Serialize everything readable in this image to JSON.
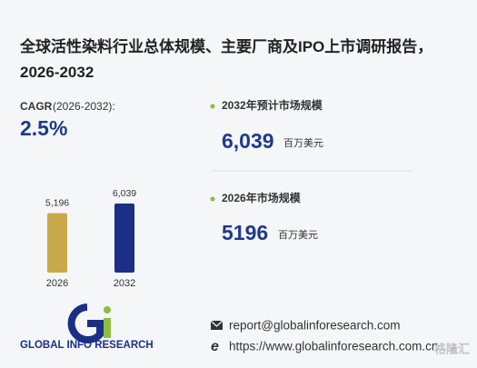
{
  "title": "全球活性染料行业总体规模、主要厂商及IPO上市调研报告，2026-2032",
  "cagr": {
    "label": "CAGR",
    "period": "(2026-2032):",
    "value": "2.5%"
  },
  "stats": [
    {
      "label": "2032年预计市场规模",
      "value": "6,039",
      "unit": "百万美元"
    },
    {
      "label": "2026年市场规模",
      "value": "5196",
      "unit": "百万美元"
    }
  ],
  "chart_data": {
    "type": "bar",
    "categories": [
      "2026",
      "2032"
    ],
    "values": [
      5196,
      6039
    ],
    "value_labels": [
      "5,196",
      "6,039"
    ],
    "colors": [
      "#c9a94a",
      "#1b2f86"
    ]
  },
  "logo": "GLOBAL INFO RESEARCH",
  "contacts": {
    "email": "report@globalinforesearch.com",
    "web": "https://www.globalinforesearch.com.cn"
  },
  "watermark": "格隆汇"
}
